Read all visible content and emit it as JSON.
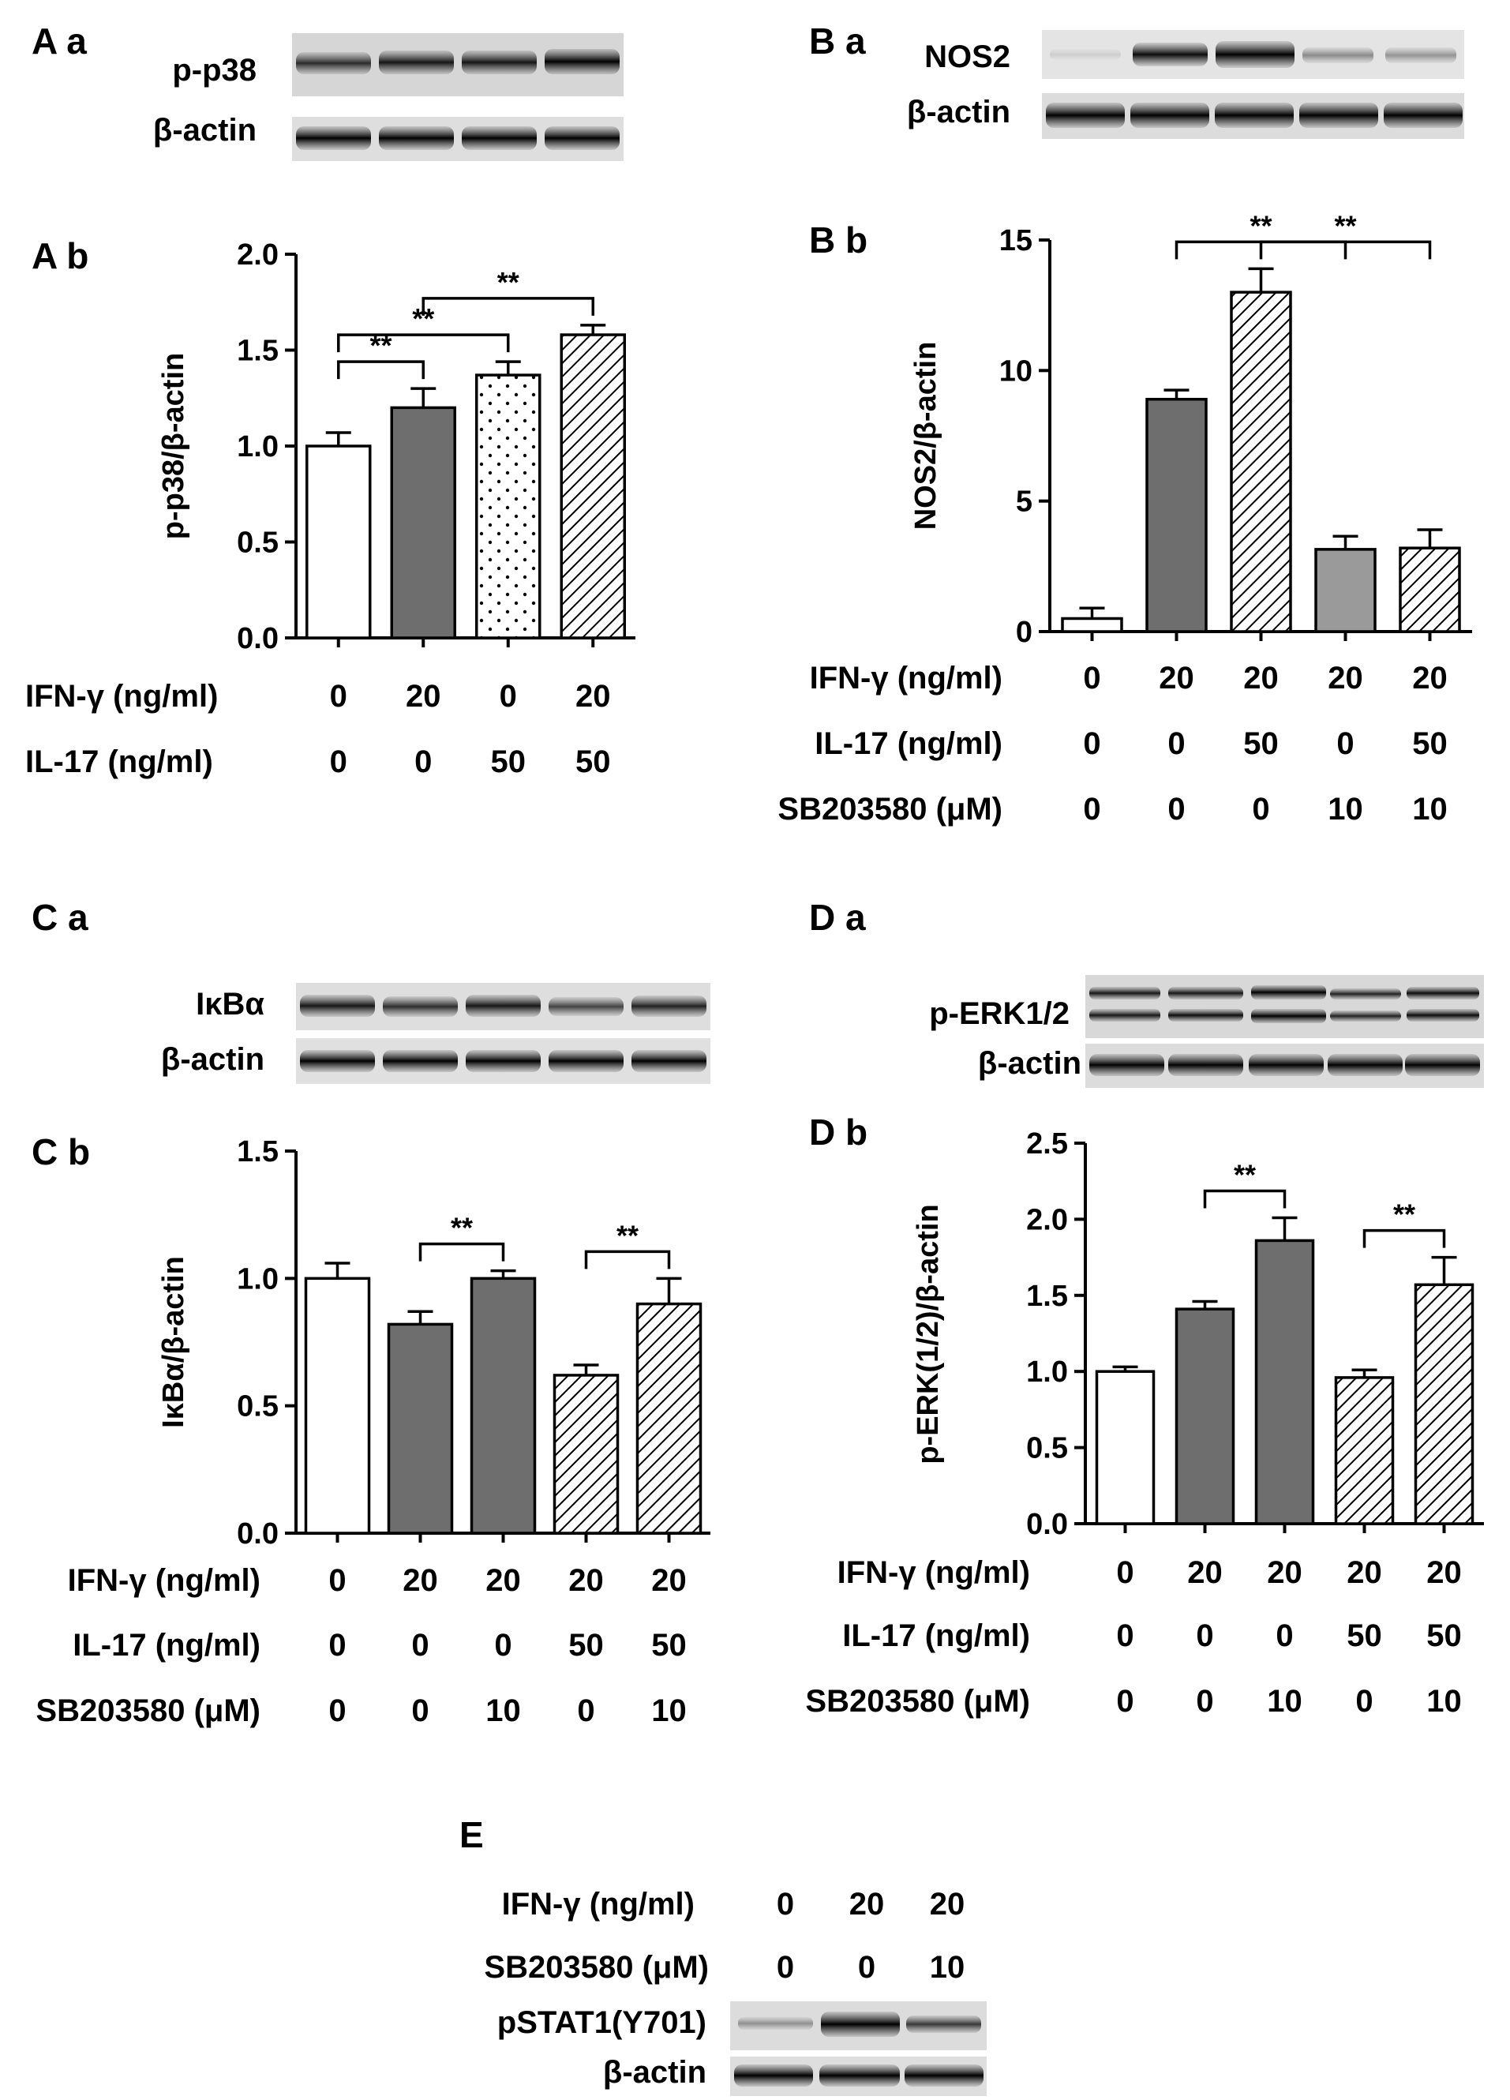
{
  "panels": {
    "Aa": "A a",
    "Ab": "A b",
    "Ba": "B a",
    "Bb": "B b",
    "Ca": "C a",
    "Cb": "C b",
    "Da": "D a",
    "Db": "D b",
    "E": "E"
  },
  "blots": {
    "A": {
      "labels": [
        "p-p38",
        "β-actin"
      ]
    },
    "B": {
      "labels": [
        "NOS2",
        "β-actin"
      ]
    },
    "C": {
      "labels": [
        "IκBα",
        "β-actin"
      ]
    },
    "D": {
      "labels": [
        "p-ERK1/2",
        "β-actin"
      ]
    },
    "E": {
      "labels": [
        "pSTAT1(Y701)",
        "β-actin"
      ],
      "conditions": [
        {
          "label": "IFN-γ (ng/ml)",
          "values": [
            "0",
            "20",
            "20"
          ]
        },
        {
          "label": "SB203580 (μM)",
          "values": [
            "0",
            "0",
            "10"
          ]
        }
      ]
    }
  },
  "significance": "**",
  "colors": {
    "white": "#ffffff",
    "dark": "#6e6e6e",
    "light": "#9a9a9a",
    "line": "#000000"
  },
  "chart_data": [
    {
      "id": "Ab",
      "type": "bar",
      "ylabel": "p-p38/β-actin",
      "ylim": [
        0,
        2.0
      ],
      "yticks": [
        "0.0",
        "0.5",
        "1.0",
        "1.5",
        "2.0"
      ],
      "values": [
        1.0,
        1.2,
        1.37,
        1.58
      ],
      "errors": [
        0.07,
        0.1,
        0.07,
        0.05
      ],
      "patterns": [
        "white",
        "dark",
        "dots",
        "hatch"
      ],
      "conditions": [
        {
          "label": "IFN-γ (ng/ml)",
          "values": [
            "0",
            "20",
            "0",
            "20"
          ]
        },
        {
          "label": "IL-17 (ng/ml)",
          "values": [
            "0",
            "0",
            "50",
            "50"
          ]
        }
      ],
      "comparisons": [
        [
          0,
          1
        ],
        [
          0,
          2
        ],
        [
          1,
          3
        ]
      ]
    },
    {
      "id": "Bb",
      "type": "bar",
      "ylabel": "NOS2/β-actin",
      "ylim": [
        0,
        15
      ],
      "yticks": [
        "0",
        "5",
        "10",
        "15"
      ],
      "values": [
        0.5,
        8.9,
        13.0,
        3.15,
        3.2
      ],
      "errors": [
        0.4,
        0.35,
        0.9,
        0.5,
        0.7
      ],
      "patterns": [
        "white",
        "dark",
        "hatch",
        "light",
        "hatch"
      ],
      "conditions": [
        {
          "label": "IFN-γ (ng/ml)",
          "values": [
            "0",
            "20",
            "20",
            "20",
            "20"
          ]
        },
        {
          "label": "IL-17 (ng/ml)",
          "values": [
            "0",
            "0",
            "50",
            "0",
            "50"
          ]
        },
        {
          "label": "SB203580 (μM)",
          "values": [
            "0",
            "0",
            "0",
            "10",
            "10"
          ]
        }
      ],
      "comparisons": [
        [
          1,
          3
        ],
        [
          2,
          4
        ]
      ]
    },
    {
      "id": "Cb",
      "type": "bar",
      "ylabel": "IκBα/β-actin",
      "ylim": [
        0,
        1.5
      ],
      "yticks": [
        "0.0",
        "0.5",
        "1.0",
        "1.5"
      ],
      "values": [
        1.0,
        0.82,
        1.0,
        0.62,
        0.9
      ],
      "errors": [
        0.06,
        0.05,
        0.03,
        0.04,
        0.1
      ],
      "patterns": [
        "white",
        "dark",
        "dark",
        "hatch",
        "hatch"
      ],
      "conditions": [
        {
          "label": "IFN-γ (ng/ml)",
          "values": [
            "0",
            "20",
            "20",
            "20",
            "20"
          ]
        },
        {
          "label": "IL-17 (ng/ml)",
          "values": [
            "0",
            "0",
            "0",
            "50",
            "50"
          ]
        },
        {
          "label": "SB203580 (μM)",
          "values": [
            "0",
            "0",
            "10",
            "0",
            "10"
          ]
        }
      ],
      "comparisons": [
        [
          1,
          2
        ],
        [
          3,
          4
        ]
      ]
    },
    {
      "id": "Db",
      "type": "bar",
      "ylabel": "p-ERK(1/2)/β-actin",
      "ylim": [
        0,
        2.5
      ],
      "yticks": [
        "0.0",
        "0.5",
        "1.0",
        "1.5",
        "2.0",
        "2.5"
      ],
      "values": [
        1.0,
        1.41,
        1.86,
        0.96,
        1.57
      ],
      "errors": [
        0.03,
        0.05,
        0.15,
        0.05,
        0.18
      ],
      "patterns": [
        "white",
        "dark",
        "dark",
        "hatch",
        "hatch"
      ],
      "conditions": [
        {
          "label": "IFN-γ (ng/ml)",
          "values": [
            "0",
            "20",
            "20",
            "20",
            "20"
          ]
        },
        {
          "label": "IL-17 (ng/ml)",
          "values": [
            "0",
            "0",
            "0",
            "50",
            "50"
          ]
        },
        {
          "label": "SB203580 (μM)",
          "values": [
            "0",
            "0",
            "10",
            "0",
            "10"
          ]
        }
      ],
      "comparisons": [
        [
          1,
          2
        ],
        [
          3,
          4
        ]
      ]
    }
  ]
}
